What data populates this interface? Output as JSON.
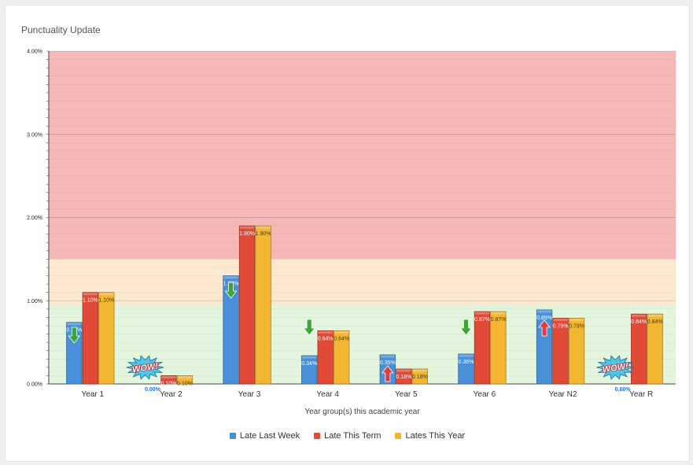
{
  "panel": {
    "title": "Punctuality Update"
  },
  "chart_data": {
    "type": "bar",
    "title": "",
    "xlabel": "Year group(s) this academic year",
    "ylabel": "",
    "ylim": [
      0,
      4
    ],
    "y_ticks": [
      "0.00%",
      "1.00%",
      "2.00%",
      "3.00%",
      "4.00%"
    ],
    "categories": [
      "Year 1",
      "Year 2",
      "Year 3",
      "Year 4",
      "Year 5",
      "Year 6",
      "Year N2",
      "Year R"
    ],
    "series": [
      {
        "name": "Late Last Week",
        "color": "#4a90d9",
        "values": [
          0.74,
          0.0,
          1.3,
          0.34,
          0.35,
          0.36,
          0.89,
          0.0
        ],
        "labels": [
          "0.74%",
          "0.00%",
          "1.30%",
          "0.34%",
          "0.35%",
          "0.36%",
          "0.89%",
          "0.00%"
        ]
      },
      {
        "name": "Late This Term",
        "color": "#e04a36",
        "values": [
          1.1,
          0.1,
          1.9,
          0.64,
          0.18,
          0.87,
          0.79,
          0.84
        ],
        "labels": [
          "1.10%",
          "0.10%",
          "1.90%",
          "0.64%",
          "0.18%",
          "0.87%",
          "0.79%",
          "0.84%"
        ]
      },
      {
        "name": "Lates This Year",
        "color": "#f2b632",
        "values": [
          1.1,
          0.1,
          1.9,
          0.64,
          0.18,
          0.87,
          0.79,
          0.84
        ],
        "labels": [
          "1.10%",
          "0.10%",
          "1.90%",
          "0.64%",
          "0.18%",
          "0.87%",
          "0.79%",
          "0.84%"
        ]
      }
    ],
    "bands": [
      {
        "from": 0.0,
        "to": 0.95,
        "color": "#e3f5dc"
      },
      {
        "from": 0.95,
        "to": 1.5,
        "color": "#fde9cf"
      },
      {
        "from": 1.5,
        "to": 4.0,
        "color": "#f6b7b7"
      }
    ],
    "trend_arrows": [
      {
        "category": "Year 1",
        "direction": "down",
        "color": "#3ca535"
      },
      {
        "category": "Year 3",
        "direction": "down",
        "color": "#3ca535"
      },
      {
        "category": "Year 4",
        "direction": "down",
        "color": "#3ca535"
      },
      {
        "category": "Year 5",
        "direction": "up",
        "color": "#e23c3c"
      },
      {
        "category": "Year 6",
        "direction": "down",
        "color": "#3ca535"
      },
      {
        "category": "Year N2",
        "direction": "up",
        "color": "#e23c3c"
      }
    ],
    "badges": [
      {
        "category": "Year 2",
        "text": "WOW!"
      },
      {
        "category": "Year R",
        "text": "WOW!"
      }
    ],
    "legend_position": "bottom",
    "grid": true
  }
}
